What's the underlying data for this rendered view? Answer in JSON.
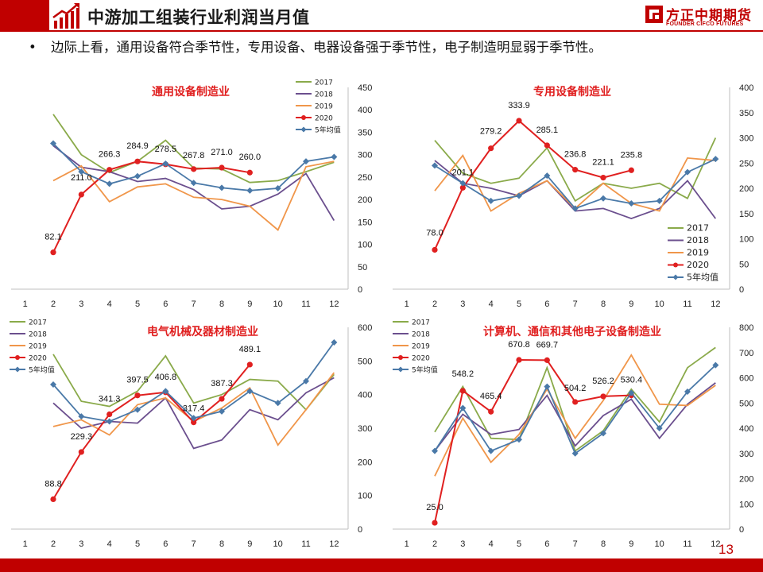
{
  "header": {
    "title": "中游加工组装行业利润当月值",
    "logo_cn": "方正中期期货",
    "logo_en": "FOUNDER CIFCO FUTURES"
  },
  "bullet": {
    "marker": "•",
    "text": "边际上看，通用设备符合季节性，专用设备、电器设备强于季节性，电子制造明显弱于季节性。"
  },
  "page_number": "13",
  "colors": {
    "brand_red": "#c00000",
    "s2017": "#8aaa4a",
    "s2018": "#6b4f8e",
    "s2019": "#f0964a",
    "s2020": "#e02020",
    "avg5": "#4a79a8"
  },
  "chart_data": [
    {
      "type": "line",
      "title": "通用设备制造业",
      "categories": [
        "1",
        "2",
        "3",
        "4",
        "5",
        "6",
        "7",
        "8",
        "9",
        "10",
        "11",
        "12"
      ],
      "ylim": [
        0,
        450
      ],
      "yticks": [
        "0",
        "50",
        "100",
        "150",
        "200",
        "250",
        "300",
        "350",
        "400",
        "450"
      ],
      "legend_position": "top-right",
      "series": [
        {
          "name": "2017",
          "values": [
            null,
            390,
            300,
            260,
            285,
            332,
            270,
            268,
            238,
            242,
            262,
            283
          ]
        },
        {
          "name": "2018",
          "values": [
            null,
            320,
            272,
            262,
            240,
            247,
            222,
            179,
            185,
            212,
            258,
            153
          ]
        },
        {
          "name": "2019",
          "values": [
            null,
            242,
            275,
            195,
            228,
            235,
            205,
            200,
            185,
            132,
            273,
            285
          ]
        },
        {
          "name": "2020",
          "values": [
            null,
            82.1,
            211.0,
            266.3,
            284.9,
            278.5,
            267.8,
            271.0,
            260.0,
            null,
            null,
            null
          ],
          "labels": [
            "",
            "82.1",
            "211.0",
            "266.3",
            "284.9",
            "278.5",
            "267.8",
            "271.0",
            "260.0",
            "",
            "",
            ""
          ]
        },
        {
          "name": "5年均值",
          "values": [
            null,
            325,
            262,
            235,
            252,
            280,
            237,
            226,
            220,
            225,
            285,
            295
          ]
        }
      ]
    },
    {
      "type": "line",
      "title": "专用设备制造业",
      "categories": [
        "1",
        "2",
        "3",
        "4",
        "5",
        "6",
        "7",
        "8",
        "9",
        "10",
        "11",
        "12"
      ],
      "ylim": [
        0,
        400
      ],
      "yticks": [
        "0",
        "50",
        "100",
        "150",
        "200",
        "250",
        "300",
        "350",
        "400"
      ],
      "legend_position": "bottom-right",
      "series": [
        {
          "name": "2017",
          "values": [
            null,
            295,
            230,
            210,
            220,
            280,
            175,
            210,
            200,
            210,
            180,
            300
          ]
        },
        {
          "name": "2018",
          "values": [
            null,
            255,
            210,
            200,
            185,
            215,
            155,
            160,
            140,
            160,
            215,
            140
          ]
        },
        {
          "name": "2019",
          "values": [
            null,
            195,
            265,
            155,
            190,
            215,
            160,
            210,
            170,
            155,
            260,
            255
          ]
        },
        {
          "name": "2020",
          "values": [
            null,
            78.0,
            201.1,
            279.2,
            333.9,
            285.1,
            236.8,
            221.1,
            235.8,
            null,
            null,
            null
          ],
          "labels": [
            "",
            "78.0",
            "201.1",
            "279.2",
            "333.9",
            "285.1",
            "236.8",
            "221.1",
            "235.8",
            "",
            "",
            ""
          ]
        },
        {
          "name": "5年均值",
          "values": [
            null,
            245,
            210,
            175,
            185,
            225,
            160,
            180,
            170,
            175,
            232,
            258
          ]
        }
      ]
    },
    {
      "type": "line",
      "title": "电气机械及器材制造业",
      "categories": [
        "1",
        "2",
        "3",
        "4",
        "5",
        "6",
        "7",
        "8",
        "9",
        "10",
        "11",
        "12"
      ],
      "ylim": [
        0,
        600
      ],
      "yticks": [
        "0",
        "100",
        "200",
        "300",
        "400",
        "500",
        "600"
      ],
      "legend_position": "top-left",
      "series": [
        {
          "name": "2017",
          "values": [
            null,
            520,
            380,
            365,
            410,
            515,
            375,
            400,
            445,
            440,
            355,
            460
          ]
        },
        {
          "name": "2018",
          "values": [
            null,
            375,
            300,
            320,
            315,
            390,
            240,
            265,
            355,
            325,
            405,
            450
          ]
        },
        {
          "name": "2019",
          "values": [
            null,
            305,
            325,
            280,
            370,
            390,
            320,
            360,
            420,
            250,
            355,
            465
          ]
        },
        {
          "name": "2020",
          "values": [
            null,
            88.8,
            229.3,
            341.3,
            397.5,
            406.8,
            317.4,
            387.3,
            489.1,
            null,
            null,
            null
          ],
          "labels": [
            "",
            "88.8",
            "229.3",
            "341.3",
            "397.5",
            "406.8",
            "317.4",
            "387.3",
            "489.1",
            "",
            "",
            ""
          ]
        },
        {
          "name": "5年均值",
          "values": [
            null,
            430,
            335,
            320,
            355,
            410,
            330,
            350,
            410,
            375,
            440,
            555
          ]
        }
      ]
    },
    {
      "type": "line",
      "title": "计算机、通信和其他电子设备制造业",
      "categories": [
        "1",
        "2",
        "3",
        "4",
        "5",
        "6",
        "7",
        "8",
        "9",
        "10",
        "11",
        "12"
      ],
      "ylim": [
        0,
        800
      ],
      "yticks": [
        "0",
        "100",
        "200",
        "300",
        "400",
        "500",
        "600",
        "700",
        "800"
      ],
      "legend_position": "top-left",
      "series": [
        {
          "name": "2017",
          "values": [
            null,
            385,
            565,
            360,
            355,
            640,
            310,
            390,
            555,
            425,
            640,
            720
          ]
        },
        {
          "name": "2018",
          "values": [
            null,
            310,
            455,
            375,
            395,
            530,
            330,
            450,
            515,
            360,
            495,
            580
          ]
        },
        {
          "name": "2019",
          "values": [
            null,
            210,
            440,
            265,
            375,
            555,
            360,
            510,
            690,
            495,
            490,
            570
          ]
        },
        {
          "name": "2020",
          "values": [
            null,
            25.0,
            548.2,
            465.4,
            670.8,
            669.7,
            504.2,
            526.2,
            530.4,
            null,
            null,
            null
          ],
          "labels": [
            "",
            "25.0",
            "548.2",
            "465.4",
            "670.8",
            "669.7",
            "504.2",
            "526.2",
            "530.4",
            "",
            "",
            ""
          ]
        },
        {
          "name": "5年均值",
          "values": [
            null,
            310,
            480,
            310,
            355,
            565,
            300,
            380,
            540,
            400,
            545,
            650
          ]
        }
      ]
    }
  ]
}
